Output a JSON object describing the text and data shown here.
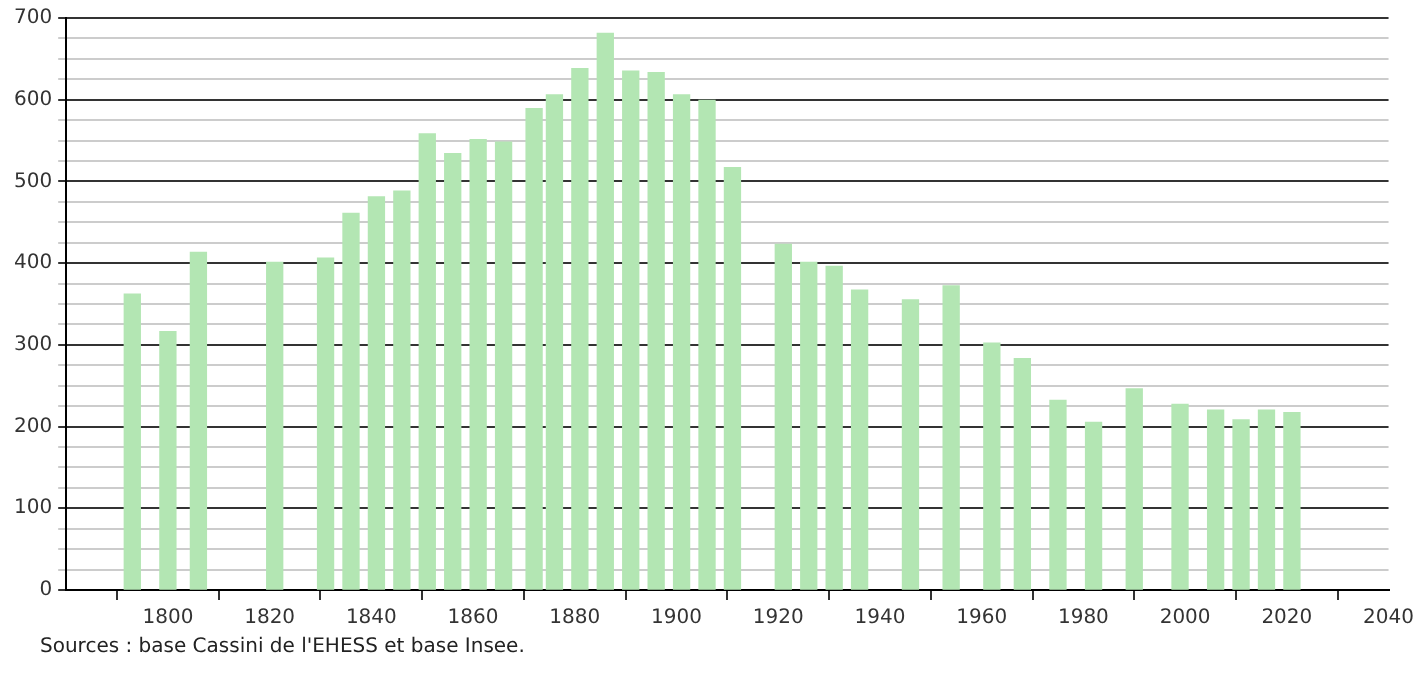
{
  "chart_data": {
    "type": "bar",
    "x": [
      1793,
      1800,
      1806,
      1821,
      1831,
      1836,
      1841,
      1846,
      1851,
      1856,
      1861,
      1866,
      1872,
      1876,
      1881,
      1886,
      1891,
      1896,
      1901,
      1906,
      1911,
      1921,
      1926,
      1931,
      1936,
      1946,
      1954,
      1962,
      1968,
      1975,
      1982,
      1990,
      1999,
      2006,
      2011,
      2016,
      2021
    ],
    "values": [
      362,
      316,
      413,
      401,
      406,
      461,
      481,
      488,
      558,
      534,
      551,
      548,
      589,
      606,
      638,
      681,
      635,
      633,
      606,
      599,
      517,
      423,
      401,
      396,
      367,
      355,
      372,
      302,
      283,
      232,
      205,
      246,
      227,
      220,
      208,
      220,
      217
    ],
    "color": "#b3e6b3",
    "xlim": [
      1780,
      2040
    ],
    "xticks": [
      {
        "value": 1780,
        "label": null
      },
      1800,
      1820,
      1840,
      1860,
      1880,
      1900,
      1920,
      1940,
      1960,
      1980,
      2000,
      2020,
      2040
    ],
    "ylim": [
      0,
      700
    ],
    "yticks": [
      0,
      {
        "value": 25,
        "label": null
      },
      {
        "value": 50,
        "label": null
      },
      {
        "value": 75,
        "label": null
      },
      100,
      {
        "value": 125,
        "label": null
      },
      {
        "value": 150,
        "label": null
      },
      {
        "value": 175,
        "label": null
      },
      200,
      {
        "value": 225,
        "label": null
      },
      {
        "value": 250,
        "label": null
      },
      {
        "value": 275,
        "label": null
      },
      300,
      {
        "value": 325,
        "label": null
      },
      {
        "value": 350,
        "label": null
      },
      {
        "value": 375,
        "label": null
      },
      400,
      {
        "value": 425,
        "label": null
      },
      {
        "value": 450,
        "label": null
      },
      {
        "value": 475,
        "label": null
      },
      500,
      {
        "value": 525,
        "label": null
      },
      {
        "value": 550,
        "label": null
      },
      {
        "value": 575,
        "label": null
      },
      600,
      {
        "value": 625,
        "label": null
      },
      {
        "value": 650,
        "label": null
      },
      {
        "value": 675,
        "label": null
      },
      700
    ],
    "grid": "y",
    "legend": false,
    "annotations": [
      "Sources : base Cassini de l'EHESS et base Insee."
    ]
  }
}
